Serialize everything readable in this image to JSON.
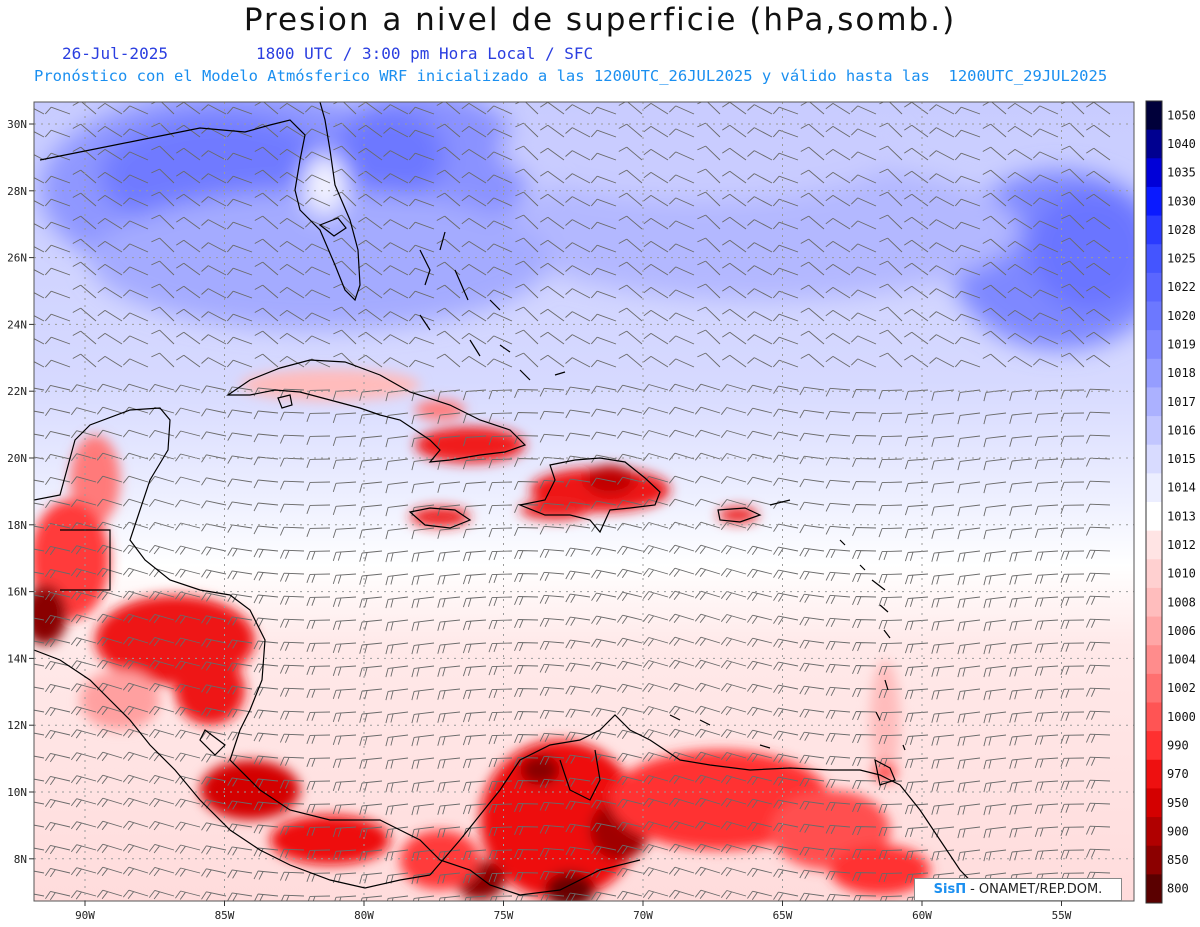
{
  "header": {
    "title": "Presion a nivel de superficie (hPa,somb.)",
    "date": "26-Jul-2025",
    "time_line": "1800 UTC / 3:00 pm Hora Local / SFC",
    "model_line": "Pronóstico con el Modelo Atmósferico WRF inicializado a las 1200UTC_26JUL2025 y válido hasta las  1200UTC_29JUL2025"
  },
  "map": {
    "lat_labels": [
      "30N",
      "28N",
      "26N",
      "24N",
      "22N",
      "20N",
      "18N",
      "16N",
      "14N",
      "12N",
      "10N",
      "8N"
    ],
    "lon_labels": [
      "90W",
      "85W",
      "80W",
      "75W",
      "70W",
      "65W",
      "60W",
      "55W"
    ],
    "grid": "dotted",
    "wind_barbs": true
  },
  "colorbar": {
    "levels": [
      "1050",
      "1040",
      "1035",
      "1030",
      "1028",
      "1025",
      "1022",
      "1020",
      "1019",
      "1018",
      "1017",
      "1016",
      "1015",
      "1014",
      "1013",
      "1012",
      "1010",
      "1008",
      "1006",
      "1004",
      "1002",
      "1000",
      "990",
      "970",
      "950",
      "900",
      "850",
      "800"
    ],
    "colors": [
      "#00003a",
      "#000090",
      "#0000d8",
      "#0a1aff",
      "#2a3aff",
      "#4455ff",
      "#5a66ff",
      "#6c78ff",
      "#8088ff",
      "#959dff",
      "#abb1ff",
      "#c2c6ff",
      "#d8dbff",
      "#eceeff",
      "#ffffff",
      "#ffe4e4",
      "#ffd0d0",
      "#ffbdbd",
      "#ffa6a6",
      "#ff8c8c",
      "#ff7070",
      "#ff5454",
      "#ff3030",
      "#ee1010",
      "#d40000",
      "#b00000",
      "#8c0000",
      "#5a0000"
    ]
  },
  "credit": {
    "brand": "SisΠ",
    "text": "- ONAMET/REP.DOM."
  }
}
